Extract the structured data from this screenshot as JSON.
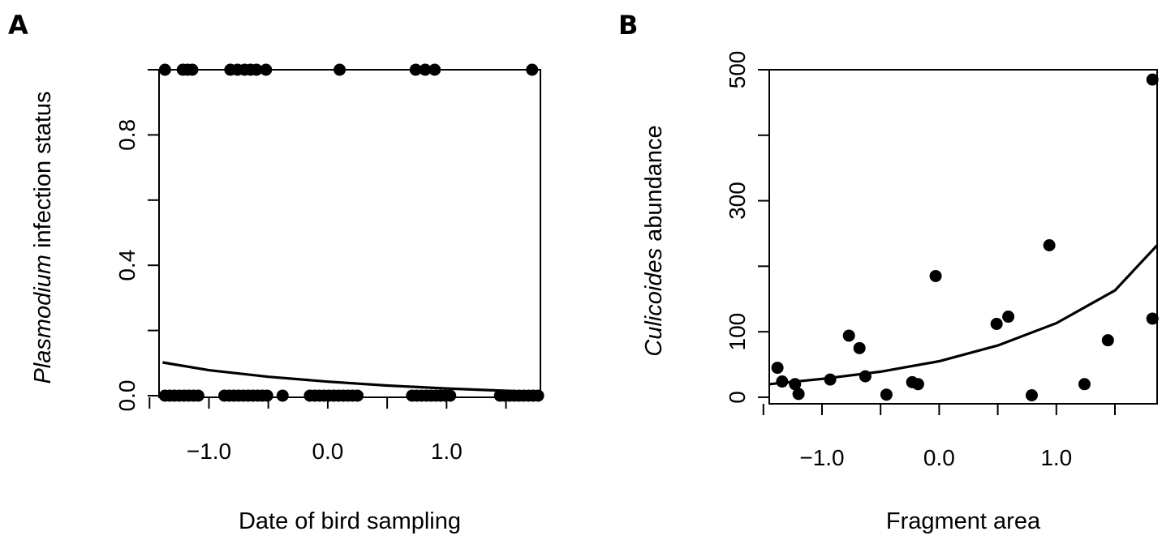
{
  "figure": {
    "panel_a_letter": "A",
    "panel_b_letter": "B"
  },
  "chart_data": [
    {
      "type": "scatter",
      "panel": "A",
      "xlabel": "Date of bird sampling",
      "ylabel_italic": "Plasmodium",
      "ylabel_rest": " infection status",
      "xlim": [
        -1.42,
        1.79
      ],
      "ylim": [
        -0.005,
        1.0
      ],
      "x_ticks": [
        -1.5,
        -1.0,
        -0.5,
        0.0,
        0.5,
        1.0,
        1.5
      ],
      "x_tick_labels": {
        "-1.0": "−1.0",
        "0.0": "0.0",
        "1.0": "1.0"
      },
      "y_ticks": [
        0.0,
        0.2,
        0.4,
        0.6,
        0.8,
        1.0
      ],
      "y_tick_labels": {
        "0": "0.0",
        "0.4": "0.4",
        "0.8": "0.8"
      },
      "grid": false,
      "points": [
        [
          -1.37,
          1
        ],
        [
          -1.22,
          1
        ],
        [
          -1.18,
          1
        ],
        [
          -1.14,
          1
        ],
        [
          -0.82,
          1
        ],
        [
          -0.76,
          1
        ],
        [
          -0.7,
          1
        ],
        [
          -0.65,
          1
        ],
        [
          -0.6,
          1
        ],
        [
          -0.52,
          1
        ],
        [
          0.1,
          1
        ],
        [
          0.74,
          1
        ],
        [
          0.82,
          1
        ],
        [
          0.9,
          1
        ],
        [
          1.72,
          1
        ],
        [
          -1.37,
          0
        ],
        [
          -1.33,
          0
        ],
        [
          -1.29,
          0
        ],
        [
          -1.25,
          0
        ],
        [
          -1.21,
          0
        ],
        [
          -1.17,
          0
        ],
        [
          -1.13,
          0
        ],
        [
          -1.09,
          0
        ],
        [
          -0.87,
          0
        ],
        [
          -0.83,
          0
        ],
        [
          -0.79,
          0
        ],
        [
          -0.75,
          0
        ],
        [
          -0.71,
          0
        ],
        [
          -0.67,
          0
        ],
        [
          -0.63,
          0
        ],
        [
          -0.59,
          0
        ],
        [
          -0.55,
          0
        ],
        [
          -0.51,
          0
        ],
        [
          -0.38,
          0
        ],
        [
          -0.15,
          0
        ],
        [
          -0.11,
          0
        ],
        [
          -0.07,
          0
        ],
        [
          -0.03,
          0
        ],
        [
          0.01,
          0
        ],
        [
          0.05,
          0
        ],
        [
          0.09,
          0
        ],
        [
          0.13,
          0
        ],
        [
          0.17,
          0
        ],
        [
          0.21,
          0
        ],
        [
          0.25,
          0
        ],
        [
          0.71,
          0
        ],
        [
          0.75,
          0
        ],
        [
          0.79,
          0
        ],
        [
          0.83,
          0
        ],
        [
          0.87,
          0
        ],
        [
          0.91,
          0
        ],
        [
          0.95,
          0
        ],
        [
          0.99,
          0
        ],
        [
          1.03,
          0
        ],
        [
          1.45,
          0
        ],
        [
          1.49,
          0
        ],
        [
          1.53,
          0
        ],
        [
          1.57,
          0
        ],
        [
          1.61,
          0
        ],
        [
          1.65,
          0
        ],
        [
          1.69,
          0
        ],
        [
          1.73,
          0
        ],
        [
          1.77,
          0
        ]
      ],
      "fit_line": {
        "x": [
          -1.39,
          -1.0,
          -0.5,
          0.0,
          0.5,
          1.0,
          1.5,
          1.78
        ],
        "y": [
          0.102,
          0.078,
          0.058,
          0.043,
          0.031,
          0.022,
          0.015,
          0.011
        ]
      }
    },
    {
      "type": "scatter",
      "panel": "B",
      "xlabel": "Fragment area",
      "ylabel_italic": "Culicoides",
      "ylabel_rest": " abundance",
      "xlim": [
        -1.45,
        1.86
      ],
      "ylim": [
        -10,
        500
      ],
      "x_ticks": [
        -1.5,
        -1.0,
        -0.5,
        0.0,
        0.5,
        1.0,
        1.5
      ],
      "x_tick_labels": {
        "-1.0": "−1.0",
        "0.0": "0.0",
        "1.0": "1.0"
      },
      "y_ticks": [
        0,
        100,
        200,
        300,
        400,
        500
      ],
      "y_tick_labels": {
        "0": "0",
        "100": "100",
        "300": "300",
        "500": "500"
      },
      "grid": false,
      "points": [
        [
          -1.38,
          45
        ],
        [
          -1.34,
          24
        ],
        [
          -1.23,
          20
        ],
        [
          -1.2,
          5
        ],
        [
          -0.93,
          27
        ],
        [
          -0.77,
          94
        ],
        [
          -0.68,
          75
        ],
        [
          -0.63,
          32
        ],
        [
          -0.45,
          4
        ],
        [
          -0.23,
          23
        ],
        [
          -0.18,
          20
        ],
        [
          -0.03,
          185
        ],
        [
          0.49,
          112
        ],
        [
          0.59,
          123
        ],
        [
          0.79,
          3
        ],
        [
          0.94,
          232
        ],
        [
          1.24,
          20
        ],
        [
          1.44,
          87
        ],
        [
          1.82,
          120
        ],
        [
          1.82,
          485
        ]
      ],
      "fit_line": {
        "x": [
          -1.45,
          -1.0,
          -0.5,
          0.0,
          0.5,
          1.0,
          1.5,
          1.86
        ],
        "y": [
          20,
          28,
          39,
          55,
          79,
          113,
          163,
          232
        ]
      }
    }
  ]
}
